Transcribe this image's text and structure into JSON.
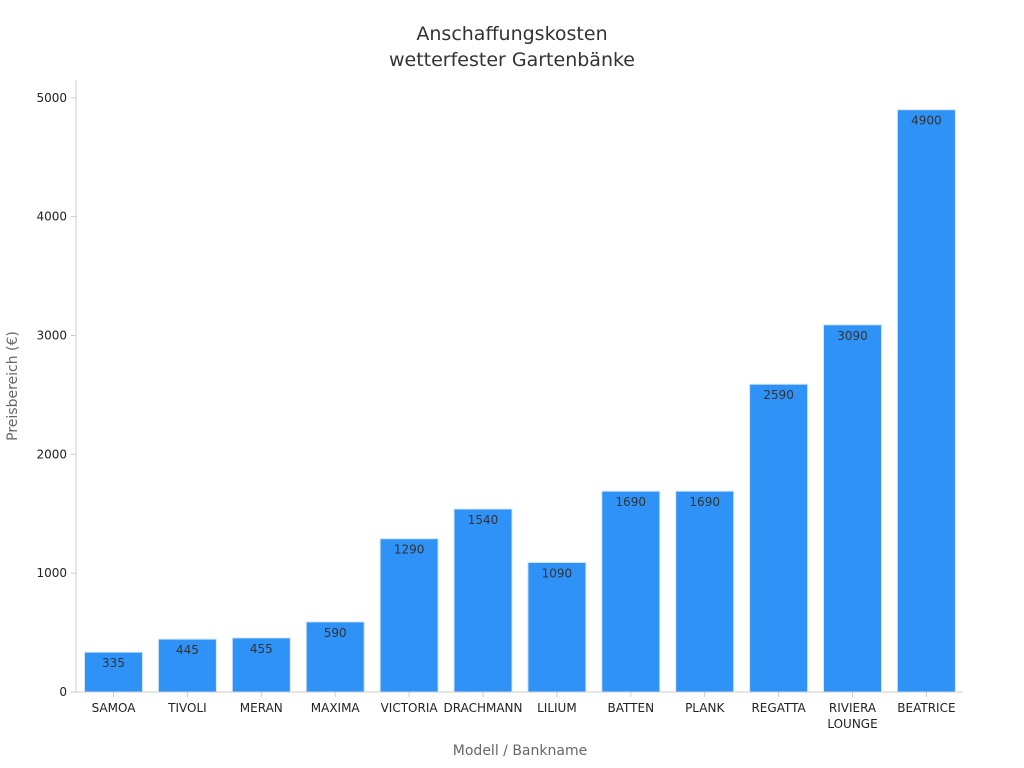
{
  "chart_data": {
    "type": "bar",
    "title": [
      "Anschaffungskosten",
      "wetterfester Gartenbänke"
    ],
    "xlabel": "Modell / Bankname",
    "ylabel": "Preisbereich (€)",
    "categories": [
      [
        "SAMOA"
      ],
      [
        "TIVOLI"
      ],
      [
        "MERAN"
      ],
      [
        "MAXIMA"
      ],
      [
        "VICTORIA"
      ],
      [
        "DRACHMANN"
      ],
      [
        "LILIUM"
      ],
      [
        "BATTEN"
      ],
      [
        "PLANK"
      ],
      [
        "REGATTA"
      ],
      [
        "RIVIERA",
        "LOUNGE"
      ],
      [
        "BEATRICE"
      ]
    ],
    "values": [
      335,
      445,
      455,
      590,
      1290,
      1540,
      1090,
      1690,
      1690,
      2590,
      3090,
      4900
    ],
    "ylim": [
      0,
      5150
    ],
    "yticks": [
      0,
      1000,
      2000,
      3000,
      4000,
      5000
    ],
    "grid": false,
    "legend": "none",
    "colors": {
      "bar": "#2f92f7",
      "bar_edge": "#d6e6f7",
      "axis": "#cccccc"
    }
  }
}
